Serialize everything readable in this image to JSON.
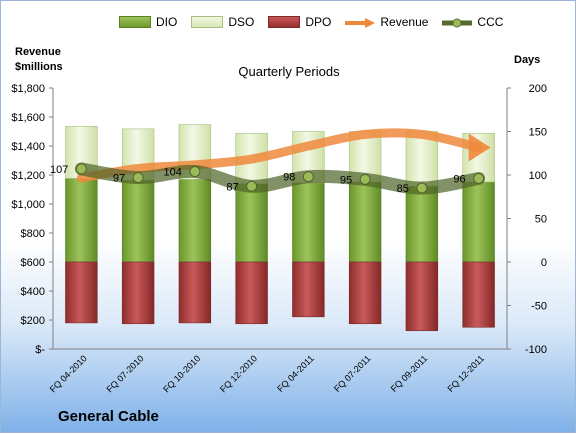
{
  "company": "General Cable",
  "chart_data": {
    "type": "bar",
    "title": "Quarterly Periods",
    "ylabel_left": "Revenue $millions",
    "ylabel_right": "Days",
    "categories": [
      "FQ 04-2010",
      "FQ 07-2010",
      "FQ 10-2010",
      "FQ 12-2010",
      "FQ 04-2011",
      "FQ 07-2011",
      "FQ 09-2011",
      "FQ 12-2011"
    ],
    "ylim_left": [
      0,
      1800
    ],
    "ylim_right": [
      -100,
      200
    ],
    "yticks_left": [
      "$-",
      "$200",
      "$400",
      "$600",
      "$800",
      "$1,000",
      "$1,200",
      "$1,400",
      "$1,600",
      "$1,800"
    ],
    "yticks_right": [
      "-100",
      "-50",
      "0",
      "50",
      "100",
      "150",
      "200"
    ],
    "grid": false,
    "legend_position": "top",
    "series": [
      {
        "name": "DIO",
        "axis": "right",
        "kind": "stacked-bar",
        "color": "#7aa33a",
        "values": [
          96,
          94,
          95,
          90,
          91,
          92,
          87,
          92
        ]
      },
      {
        "name": "DSO",
        "axis": "right",
        "kind": "stacked-bar",
        "color": "#dfebc4",
        "values": [
          60,
          59,
          63,
          58,
          59,
          58,
          63,
          56
        ]
      },
      {
        "name": "DPO",
        "axis": "right",
        "kind": "negative-bar",
        "color": "#a8383b",
        "values": [
          -70,
          -71,
          -70,
          -71,
          -63,
          -71,
          -79,
          -75
        ]
      },
      {
        "name": "Revenue",
        "axis": "left",
        "kind": "line",
        "color": "#f0883c",
        "values": [
          1180,
          1245,
          1270,
          1310,
          1400,
          1480,
          1480,
          1390
        ]
      },
      {
        "name": "CCC",
        "axis": "right",
        "kind": "line",
        "color": "#556b2f",
        "values": [
          107,
          97,
          104,
          87,
          98,
          95,
          85,
          96
        ]
      }
    ],
    "data_labels": {
      "CCC": [
        "107",
        "97",
        "104",
        "87",
        "98",
        "95",
        "85",
        "96"
      ]
    }
  }
}
